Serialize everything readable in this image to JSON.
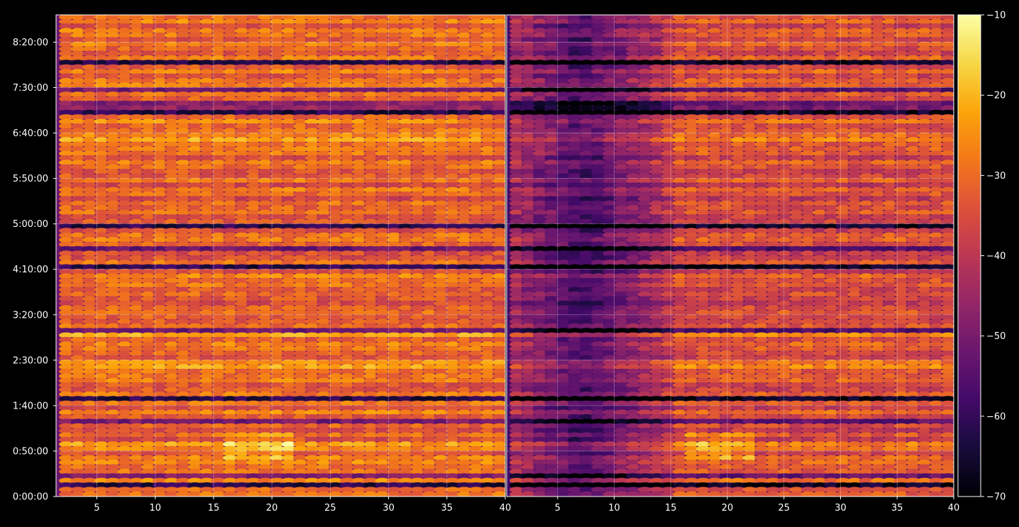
{
  "chart_data": {
    "type": "heatmap",
    "title": "",
    "xlabel": "",
    "ylabel": "",
    "panels": [
      {
        "name": "",
        "xlim": [
          1.5,
          40
        ],
        "x_ticks": [
          5,
          10,
          15,
          20,
          25,
          30,
          35,
          40
        ],
        "intensity_profile": "bright"
      },
      {
        "name": "",
        "xlim": [
          0.5,
          40
        ],
        "x_ticks": [
          5,
          10,
          15,
          20,
          25,
          30,
          35,
          40
        ],
        "intensity_profile": "dark-low-x"
      }
    ],
    "ylim_seconds": [
      0,
      31800
    ],
    "y_tick_seconds": [
      0,
      3000,
      6000,
      9000,
      12000,
      15000,
      18000,
      21000,
      24000,
      27000,
      30000
    ],
    "y_tick_labels": [
      "0:00:00",
      "0:50:00",
      "1:40:00",
      "2:30:00",
      "3:20:00",
      "4:10:00",
      "5:00:00",
      "5:50:00",
      "6:40:00",
      "7:30:00",
      "8:20:00"
    ],
    "colorbar": {
      "colormap": "inferno",
      "range": [
        -70,
        -10
      ],
      "ticks": [
        -70,
        -60,
        -50,
        -40,
        -30,
        -20,
        -10
      ],
      "tick_labels": [
        "−70",
        "−60",
        "−50",
        "−40",
        "−30",
        "−20",
        "−10"
      ]
    },
    "grid": true,
    "note_values": "dense per-cell intensity values (dB) approximated; dark horizontal bands near 0:15, 1:50, 4:15, 5:00, 7:05; bright hotspots near x 18-20 at 0:45-1:05"
  },
  "colors": {
    "background": "#000000",
    "grid": "#ffffff",
    "axis_text": "#ffffff"
  }
}
